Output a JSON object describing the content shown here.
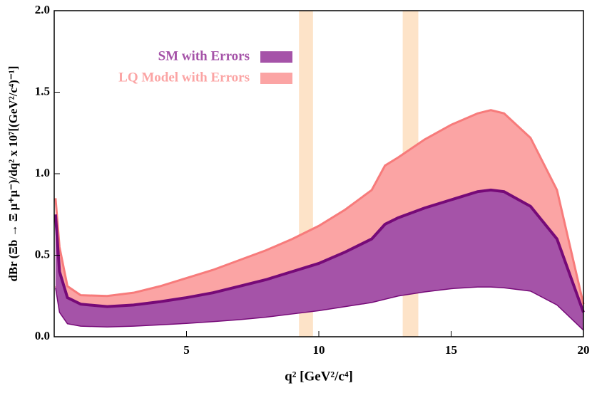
{
  "chart_data": {
    "type": "band",
    "x_label": "q² [GeV²/c⁴]",
    "y_label": "dBr (Ξb → Ξ μ⁺μ⁻)/dq² x 10⁷[(GeV²/c⁴)⁻¹]",
    "xlim": [
      0,
      20
    ],
    "ylim": [
      0,
      2
    ],
    "xticks": [
      5,
      10,
      15,
      20
    ],
    "yticks": [
      {
        "value": 0,
        "label": "0.0"
      },
      0.5,
      {
        "value": 1,
        "label": "1.0"
      },
      1.5,
      {
        "value": 2,
        "label": "2.0"
      }
    ],
    "x": [
      0.05,
      0.2,
      0.5,
      1,
      2,
      3,
      4,
      5,
      6,
      7,
      8,
      9,
      10,
      11,
      12,
      12.5,
      13,
      14,
      15,
      16,
      16.5,
      17,
      18,
      19,
      20
    ],
    "series": [
      {
        "name": "LQ Model with Errors",
        "color": "#fba4a4",
        "edge_color": "#f77b7b",
        "lower": [
          0.31,
          0.16,
          0.085,
          0.07,
          0.065,
          0.07,
          0.078,
          0.087,
          0.098,
          0.11,
          0.125,
          0.145,
          0.165,
          0.19,
          0.215,
          0.235,
          0.255,
          0.28,
          0.3,
          0.31,
          0.31,
          0.305,
          0.285,
          0.2,
          0.045
        ],
        "upper": [
          0.85,
          0.55,
          0.31,
          0.255,
          0.25,
          0.27,
          0.31,
          0.36,
          0.41,
          0.47,
          0.53,
          0.6,
          0.68,
          0.78,
          0.9,
          1.05,
          1.1,
          1.21,
          1.3,
          1.37,
          1.39,
          1.37,
          1.22,
          0.9,
          0.2
        ]
      },
      {
        "name": "SM with Errors",
        "color": "#a553a8",
        "edge_color": "#760a78",
        "lower": [
          0.3,
          0.15,
          0.08,
          0.065,
          0.06,
          0.065,
          0.073,
          0.082,
          0.093,
          0.105,
          0.12,
          0.14,
          0.16,
          0.185,
          0.21,
          0.23,
          0.25,
          0.275,
          0.295,
          0.305,
          0.305,
          0.3,
          0.28,
          0.195,
          0.04
        ],
        "upper": [
          0.75,
          0.4,
          0.24,
          0.2,
          0.185,
          0.195,
          0.215,
          0.24,
          0.27,
          0.31,
          0.35,
          0.4,
          0.45,
          0.52,
          0.6,
          0.69,
          0.73,
          0.79,
          0.84,
          0.89,
          0.9,
          0.89,
          0.8,
          0.6,
          0.15
        ]
      }
    ],
    "shaded_regions": [
      [
        9.25,
        9.78
      ],
      [
        13.17,
        13.76
      ]
    ],
    "shaded_color": "#fde3c8",
    "legend": "upper-left"
  }
}
